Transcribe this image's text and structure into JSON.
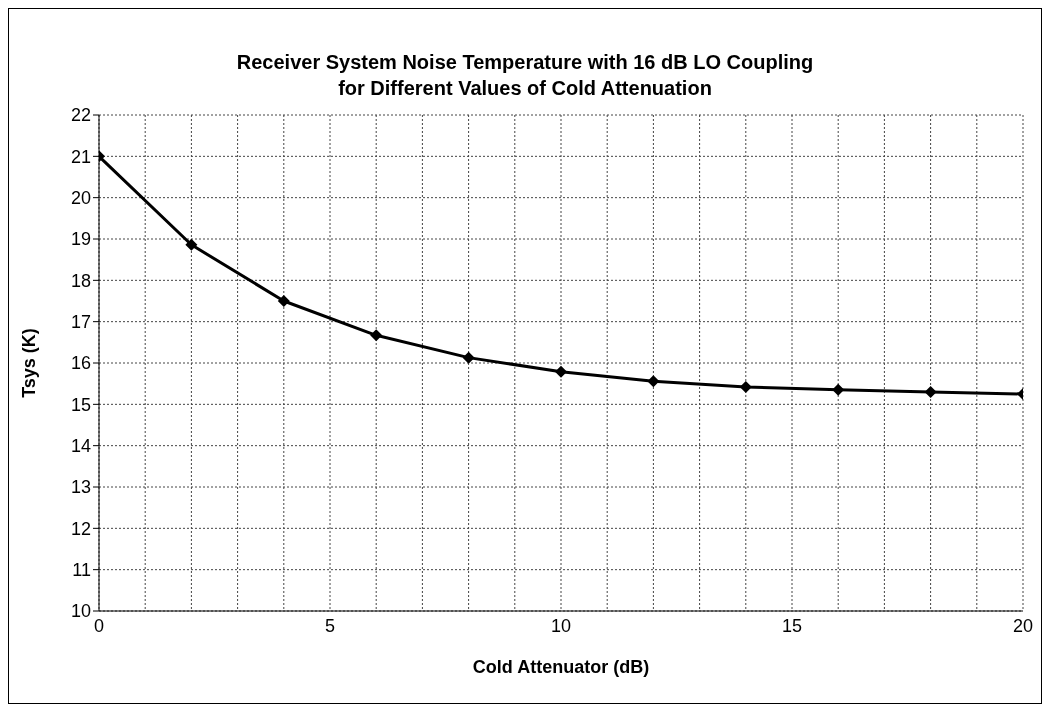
{
  "chart_data": {
    "type": "line",
    "title": "Receiver System Noise Temperature with 16 dB LO Coupling\nfor Different Values of Cold Attenuation",
    "xlabel": "Cold Attenuator (dB)",
    "ylabel": "Tsys (K)",
    "x": [
      0,
      2,
      4,
      6,
      8,
      10,
      12,
      14,
      16,
      18,
      20
    ],
    "series": [
      {
        "color": "#000000",
        "values": [
          21.0,
          18.86,
          17.5,
          16.67,
          16.13,
          15.79,
          15.56,
          15.42,
          15.35,
          15.3,
          15.25
        ]
      }
    ],
    "xlim": [
      0,
      20
    ],
    "xticks": [
      0,
      {
        "value": 1,
        "label": null
      },
      {
        "value": 2,
        "label": null
      },
      {
        "value": 3,
        "label": null
      },
      {
        "value": 4,
        "label": null
      },
      5,
      {
        "value": 6,
        "label": null
      },
      {
        "value": 7,
        "label": null
      },
      {
        "value": 8,
        "label": null
      },
      {
        "value": 9,
        "label": null
      },
      10,
      {
        "value": 11,
        "label": null
      },
      {
        "value": 12,
        "label": null
      },
      {
        "value": 13,
        "label": null
      },
      {
        "value": 14,
        "label": null
      },
      15,
      {
        "value": 16,
        "label": null
      },
      {
        "value": 17,
        "label": null
      },
      {
        "value": 18,
        "label": null
      },
      {
        "value": 19,
        "label": null
      },
      20
    ],
    "ylim": [
      10,
      22
    ],
    "yticks": [
      10,
      11,
      12,
      13,
      14,
      15,
      16,
      17,
      18,
      19,
      20,
      21,
      22
    ],
    "grid": true,
    "legend": false,
    "marker": "diamond",
    "line_style": "solid"
  }
}
